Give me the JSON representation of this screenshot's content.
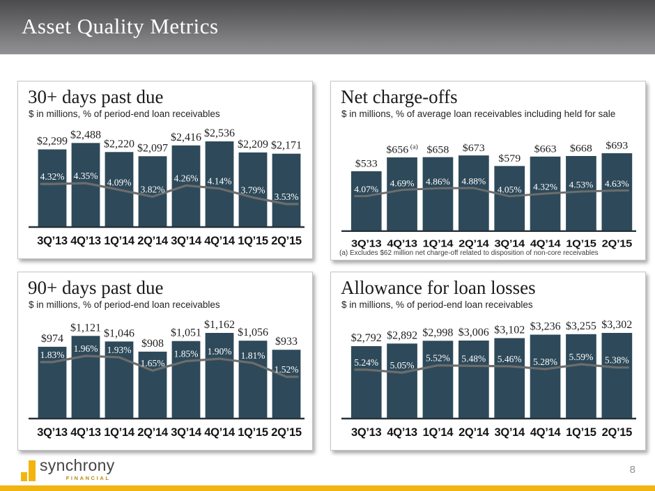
{
  "slide": {
    "title": "Asset Quality Metrics",
    "page_number": "8"
  },
  "footer": {
    "brand": "synchrony",
    "brand_sub": "FINANCIAL"
  },
  "colors": {
    "bar_fill": "#2e4a5a",
    "trend_line": "#6d6d6d",
    "axis": "#26323c",
    "accent_gold": "#f2b411",
    "header_gradient_top": "#4b4b4d",
    "header_gradient_bottom": "#929294"
  },
  "chart_data": [
    {
      "type": "bar",
      "title": "30+ days past due",
      "subtitle": "$ in millions, % of period-end loan receivables",
      "categories": [
        "3Q’13",
        "4Q’13",
        "1Q’14",
        "2Q’14",
        "3Q’14",
        "4Q’14",
        "1Q’15",
        "2Q’15"
      ],
      "bars": {
        "name": "$ in millions",
        "values": [
          2299,
          2488,
          2220,
          2097,
          2416,
          2536,
          2209,
          2171
        ],
        "labels": [
          "$2,299",
          "$2,488",
          "$2,220",
          "$2,097",
          "$2,416",
          "$2,536",
          "$2,209",
          "$2,171"
        ]
      },
      "line": {
        "name": "% of period-end loan receivables",
        "values": [
          4.32,
          4.35,
          4.09,
          3.82,
          4.26,
          4.14,
          3.79,
          3.53
        ],
        "labels": [
          "4.32%",
          "4.35%",
          "4.09%",
          "3.82%",
          "4.26%",
          "4.14%",
          "3.79%",
          "3.53%"
        ]
      }
    },
    {
      "type": "bar",
      "title": "Net charge-offs",
      "subtitle": "$ in millions, % of average loan receivables including held for sale",
      "categories": [
        "3Q’13",
        "4Q’13",
        "1Q’14",
        "2Q’14",
        "3Q’14",
        "4Q’14",
        "1Q’15",
        "2Q’15"
      ],
      "bars": {
        "name": "$ in millions",
        "values": [
          533,
          656,
          658,
          673,
          579,
          663,
          668,
          693
        ],
        "labels": [
          "$533",
          "$656",
          "$658",
          "$673",
          "$579",
          "$663",
          "$668",
          "$693"
        ],
        "label_sups": {
          "1": "(a)"
        }
      },
      "line": {
        "name": "% of average loan receivables including held for sale",
        "values": [
          4.07,
          4.69,
          4.86,
          4.88,
          4.05,
          4.32,
          4.53,
          4.63
        ],
        "labels": [
          "4.07%",
          "4.69%",
          "4.86%",
          "4.88%",
          "4.05%",
          "4.32%",
          "4.53%",
          "4.63%"
        ]
      },
      "footnote": "(a) Excludes $62 million net charge-off related to disposition of non-core receivables"
    },
    {
      "type": "bar",
      "title": "90+ days past due",
      "subtitle": "$ in millions, % of period-end loan receivables",
      "categories": [
        "3Q’13",
        "4Q’13",
        "1Q’14",
        "2Q’14",
        "3Q’14",
        "4Q’14",
        "1Q’15",
        "2Q’15"
      ],
      "bars": {
        "name": "$ in millions",
        "values": [
          974,
          1121,
          1046,
          908,
          1051,
          1162,
          1056,
          933
        ],
        "labels": [
          "$974",
          "$1,121",
          "$1,046",
          "$908",
          "$1,051",
          "$1,162",
          "$1,056",
          "$933"
        ]
      },
      "line": {
        "name": "% of period-end loan receivables",
        "values": [
          1.83,
          1.96,
          1.93,
          1.65,
          1.85,
          1.9,
          1.81,
          1.52
        ],
        "labels": [
          "1.83%",
          "1.96%",
          "1.93%",
          "1.65%",
          "1.85%",
          "1.90%",
          "1.81%",
          "1.52%"
        ]
      }
    },
    {
      "type": "bar",
      "title": "Allowance for loan losses",
      "subtitle": "$ in millions, % of period-end loan receivables",
      "categories": [
        "3Q’13",
        "4Q’13",
        "1Q’14",
        "2Q’14",
        "3Q’14",
        "4Q’14",
        "1Q’15",
        "2Q’15"
      ],
      "bars": {
        "name": "$ in millions",
        "values": [
          2792,
          2892,
          2998,
          3006,
          3102,
          3236,
          3255,
          3302
        ],
        "labels": [
          "$2,792",
          "$2,892",
          "$2,998",
          "$3,006",
          "$3,102",
          "$3,236",
          "$3,255",
          "$3,302"
        ]
      },
      "line": {
        "name": "% of period-end loan receivables",
        "values": [
          5.24,
          5.05,
          5.52,
          5.48,
          5.46,
          5.28,
          5.59,
          5.38
        ],
        "labels": [
          "5.24%",
          "5.05%",
          "5.52%",
          "5.48%",
          "5.46%",
          "5.28%",
          "5.59%",
          "5.38%"
        ]
      }
    }
  ]
}
